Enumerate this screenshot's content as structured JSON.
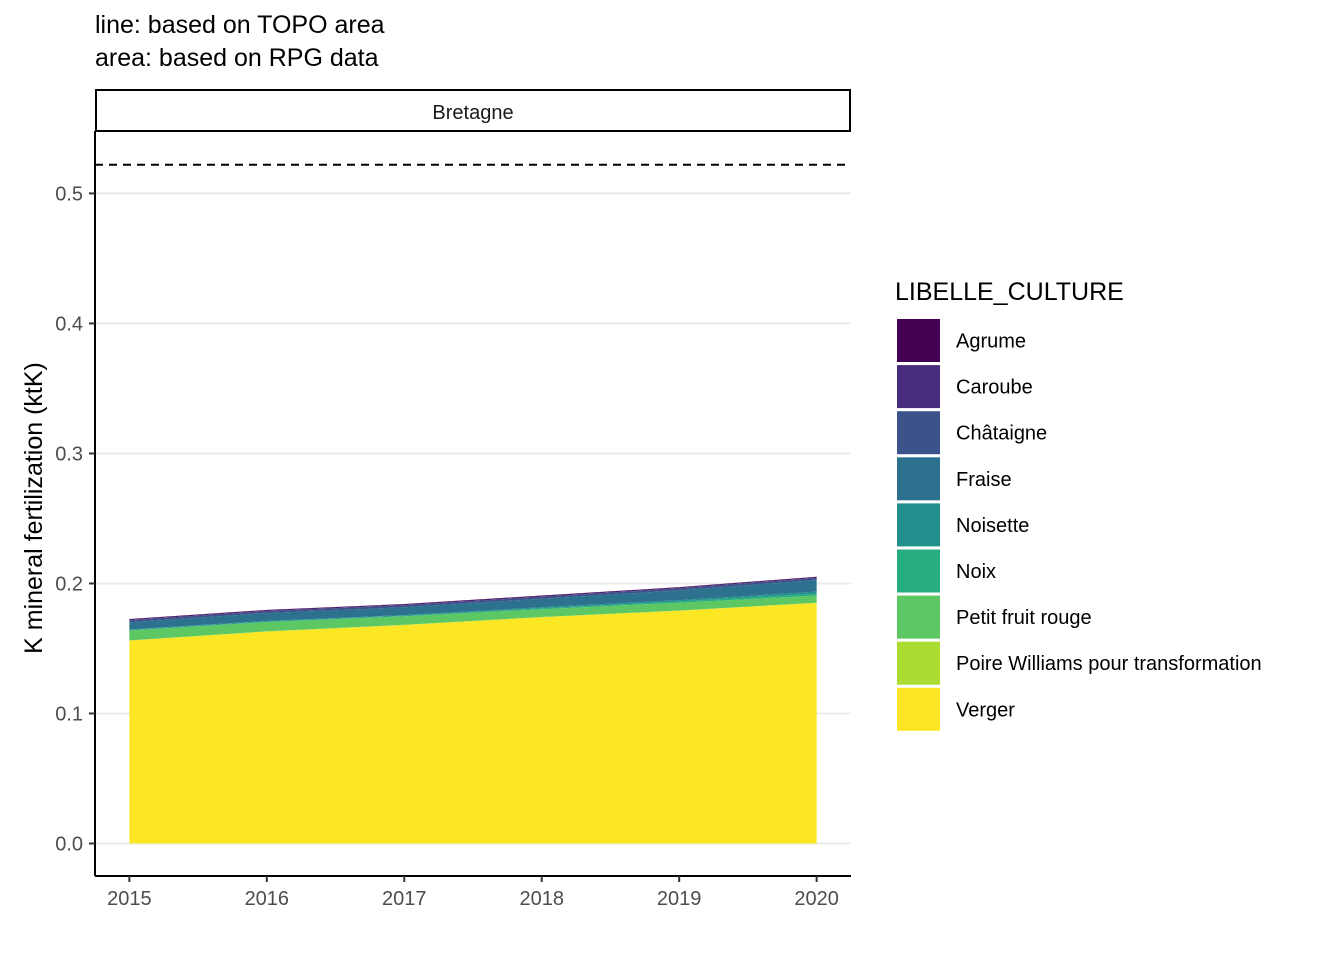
{
  "subtitle_lines": [
    "line: based on TOPO area",
    "area: based on RPG data"
  ],
  "facet_label": "Bretagne",
  "chart_data": {
    "type": "area",
    "stacked": true,
    "x": [
      2015,
      2016,
      2017,
      2018,
      2019,
      2020
    ],
    "xlim": [
      2014.75,
      2020.25
    ],
    "ylim": [
      -0.025,
      0.548
    ],
    "xticks": [
      2015,
      2016,
      2017,
      2018,
      2019,
      2020
    ],
    "yticks": [
      0.0,
      0.1,
      0.2,
      0.3,
      0.4,
      0.5
    ],
    "ytick_labels": [
      "0.0",
      "0.1",
      "0.2",
      "0.3",
      "0.4",
      "0.5"
    ],
    "ylabel": "K mineral fertilization (ktK)",
    "xlabel": "",
    "grid": "horizontal major",
    "legend_position": "right",
    "legend_title": "LIBELLE_CULTURE",
    "reference_line": {
      "style": "dashed",
      "value": 0.522
    },
    "series": [
      {
        "name": "Agrume",
        "color": "#440154",
        "values": [
          0.0005,
          0.0005,
          0.0005,
          0.0005,
          0.0005,
          0.0005
        ]
      },
      {
        "name": "Caroube",
        "color": "#472D7B",
        "values": [
          0.0005,
          0.0005,
          0.0005,
          0.0005,
          0.0005,
          0.0005
        ]
      },
      {
        "name": "Châtaigne",
        "color": "#3B528B",
        "values": [
          0.0015,
          0.0015,
          0.0015,
          0.0015,
          0.0015,
          0.0015
        ]
      },
      {
        "name": "Fraise",
        "color": "#2C728E",
        "values": [
          0.0055,
          0.006,
          0.006,
          0.0065,
          0.0075,
          0.009
        ]
      },
      {
        "name": "Noisette",
        "color": "#21908C",
        "values": [
          0.0005,
          0.0005,
          0.0005,
          0.0008,
          0.001,
          0.0015
        ]
      },
      {
        "name": "Noix",
        "color": "#27AD81",
        "values": [
          0.0005,
          0.0005,
          0.0005,
          0.0007,
          0.001,
          0.0015
        ]
      },
      {
        "name": "Petit fruit rouge",
        "color": "#5DC863",
        "values": [
          0.0075,
          0.007,
          0.0065,
          0.006,
          0.006,
          0.0055
        ]
      },
      {
        "name": "Poire Williams pour transformation",
        "color": "#AADC32",
        "values": [
          0.0002,
          0.0002,
          0.0002,
          0.0002,
          0.0002,
          0.0002
        ]
      },
      {
        "name": "Verger",
        "color": "#FDE725",
        "values": [
          0.156,
          0.163,
          0.168,
          0.174,
          0.179,
          0.185
        ]
      }
    ]
  }
}
